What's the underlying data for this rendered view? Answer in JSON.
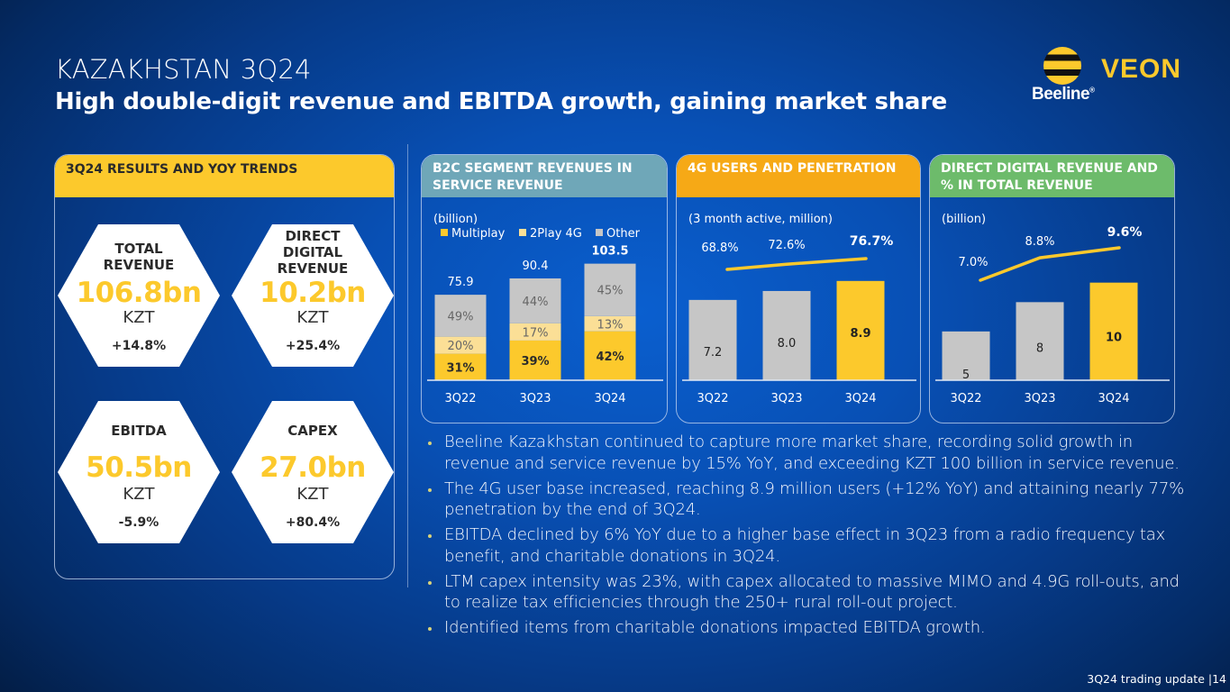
{
  "header": {
    "title": "KAZAKHSTAN 3Q24",
    "subtitle": "High double-digit revenue and EBITDA growth, gaining market share"
  },
  "logo": {
    "brand_left": "Beeline",
    "brand_right": "VEON",
    "registered": "®"
  },
  "results": {
    "heading": "3Q24 RESULTS AND YOY TRENDS",
    "kpis": [
      {
        "label": "TOTAL REVENUE",
        "value": "106.8bn",
        "unit": "KZT",
        "change": "+14.8%"
      },
      {
        "label": "DIRECT DIGITAL REVENUE",
        "value": "10.2bn",
        "unit": "KZT",
        "change": "+25.4%"
      },
      {
        "label": "EBITDA",
        "value": "50.5bn",
        "unit": "KZT",
        "change": "-5.9%"
      },
      {
        "label": "CAPEX",
        "value": "27.0bn",
        "unit": "KZT",
        "change": "+80.4%"
      }
    ]
  },
  "colors": {
    "yellow": "#fcc92c",
    "light_yellow": "#fbdf96",
    "grey": "#c6c6c6",
    "teal_header": "#6fa7b8",
    "orange_header": "#f6a916",
    "green_header": "#6dbb6b"
  },
  "chart_data": [
    {
      "type": "bar",
      "stacked": true,
      "title": "B2C SEGMENT REVENUES IN SERVICE REVENUE",
      "unit_note": "(billion)",
      "categories": [
        "3Q22",
        "3Q23",
        "3Q24"
      ],
      "totals": [
        75.9,
        90.4,
        103.5
      ],
      "total_labels": [
        "75.9",
        "90.4",
        "103.5"
      ],
      "series": [
        {
          "name": "Multiplay",
          "values": [
            31,
            39,
            42
          ],
          "labels": [
            "31%",
            "39%",
            "42%"
          ]
        },
        {
          "name": "2Play 4G",
          "values": [
            20,
            17,
            13
          ],
          "labels": [
            "20%",
            "17%",
            "13%"
          ]
        },
        {
          "name": "Other",
          "values": [
            49,
            44,
            45
          ],
          "labels": [
            "49%",
            "44%",
            "45%"
          ]
        }
      ],
      "legend": "top-left",
      "ylim": [
        0,
        120
      ]
    },
    {
      "type": "bar",
      "title": "4G USERS AND PENETRATION",
      "unit_note": "(3 month active, million)",
      "categories": [
        "3Q22",
        "3Q23",
        "3Q24"
      ],
      "series": [
        {
          "name": "4G users (million)",
          "values": [
            7.2,
            8.0,
            8.9
          ],
          "labels": [
            "7.2",
            "8.0",
            "8.9"
          ]
        },
        {
          "name": "Penetration",
          "type": "line",
          "values": [
            68.8,
            72.6,
            76.7
          ],
          "labels": [
            "68.8%",
            "72.6%",
            "76.7%"
          ]
        }
      ],
      "ylim": [
        0,
        10.5
      ]
    },
    {
      "type": "bar",
      "title": "DIRECT DIGITAL REVENUE AND % IN TOTAL REVENUE",
      "unit_note": "(billion)",
      "categories": [
        "3Q22",
        "3Q23",
        "3Q24"
      ],
      "series": [
        {
          "name": "Direct digital revenue (billion)",
          "values": [
            5,
            8,
            10
          ],
          "labels": [
            "5",
            "8",
            "10"
          ]
        },
        {
          "name": "% in total revenue",
          "type": "line",
          "values": [
            7.0,
            8.8,
            9.6
          ],
          "labels": [
            "7.0%",
            "8.8%",
            "9.6%"
          ]
        }
      ],
      "ylim": [
        0,
        12
      ]
    }
  ],
  "bullets": [
    "Beeline Kazakhstan continued to capture more market share, recording solid growth in revenue and service revenue by 15% YoY, and exceeding KZT 100 billion in service revenue.",
    "The 4G user base increased, reaching 8.9 million users (+12% YoY) and attaining nearly 77% penetration by the end of 3Q24.",
    "EBITDA declined by 6% YoY due to a higher base effect in 3Q23 from a radio frequency tax benefit, and charitable donations in 3Q24.",
    "LTM capex intensity was 23%, with capex allocated to massive MIMO and 4.9G roll-outs, and to realize tax efficiencies through the 250+ rural roll-out project.",
    "Identified items from charitable donations impacted EBITDA growth."
  ],
  "footer": {
    "text": "3Q24 trading update |",
    "page": "14"
  }
}
